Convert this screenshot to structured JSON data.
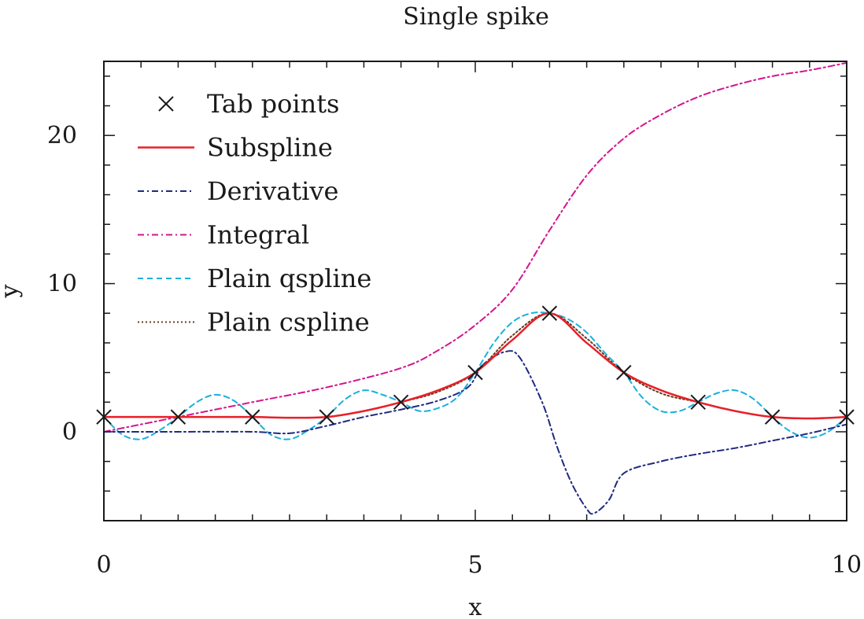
{
  "chart_data": {
    "type": "line",
    "title": "Single spike",
    "xlabel": "x",
    "ylabel": "y",
    "xlim": [
      0,
      10
    ],
    "ylim": [
      -6,
      25
    ],
    "x_ticks": [
      0,
      5,
      10
    ],
    "y_ticks": [
      0,
      10,
      20
    ],
    "x_minor_step": 0.5,
    "y_minor_step": 2,
    "grid": false,
    "legend_position": "top-left",
    "series": [
      {
        "name": "Tab points",
        "style": "markers",
        "color": "#1a1a1a",
        "x": [
          0,
          1,
          2,
          3,
          4,
          5,
          6,
          7,
          8,
          9,
          10
        ],
        "y": [
          1,
          1,
          1,
          1,
          2,
          4,
          8,
          4,
          2,
          1,
          1
        ]
      },
      {
        "name": "Subspline",
        "style": "solid",
        "color": "#e8202a",
        "x": [
          0,
          0.5,
          1,
          1.5,
          2,
          2.5,
          3,
          3.5,
          4,
          4.5,
          5,
          5.5,
          6,
          6.5,
          7,
          7.5,
          8,
          8.5,
          9,
          9.5,
          10
        ],
        "y": [
          1,
          1,
          1,
          1,
          1,
          0.95,
          1,
          1.4,
          2,
          2.8,
          4,
          6.2,
          8,
          6.0,
          4,
          2.8,
          2,
          1.4,
          1,
          0.9,
          1
        ]
      },
      {
        "name": "Derivative",
        "style": "dashdot",
        "color": "#1f2a80",
        "x": [
          0,
          1,
          2,
          2.5,
          3,
          3.5,
          4,
          4.5,
          4.9,
          5.1,
          5.4,
          5.6,
          5.9,
          6.1,
          6.3,
          6.5,
          6.6,
          6.8,
          7,
          7.5,
          8,
          8.5,
          9,
          9.5,
          10
        ],
        "y": [
          0,
          0,
          0,
          -0.1,
          0.4,
          1.0,
          1.5,
          2.1,
          3.0,
          4.5,
          5.4,
          5.0,
          2.0,
          -1.0,
          -3.5,
          -5.2,
          -5.5,
          -4.6,
          -2.8,
          -2.0,
          -1.5,
          -1.1,
          -0.6,
          -0.1,
          0.5
        ]
      },
      {
        "name": "Integral",
        "style": "dashdot",
        "color": "#d4148c",
        "x": [
          0,
          1,
          2,
          3,
          4,
          4.5,
          5,
          5.5,
          6,
          6.5,
          7,
          7.5,
          8,
          8.5,
          9,
          9.5,
          10
        ],
        "y": [
          0,
          1,
          2,
          3,
          4.3,
          5.5,
          7.2,
          9.6,
          13.6,
          17.3,
          19.8,
          21.4,
          22.6,
          23.4,
          24.0,
          24.4,
          24.9
        ]
      },
      {
        "name": "Plain qspline",
        "style": "dashed",
        "color": "#1ab0e0",
        "x": [
          0,
          0.25,
          0.5,
          0.75,
          1,
          1.25,
          1.5,
          1.75,
          2,
          2.25,
          2.5,
          2.75,
          3,
          3.25,
          3.5,
          3.75,
          4,
          4.25,
          4.5,
          4.75,
          5,
          5.25,
          5.5,
          5.75,
          6,
          6.25,
          6.5,
          6.75,
          7,
          7.25,
          7.5,
          7.75,
          8,
          8.25,
          8.5,
          8.75,
          9,
          9.25,
          9.5,
          9.75,
          10
        ],
        "y": [
          1,
          -0.2,
          -0.5,
          0.1,
          1,
          2.0,
          2.5,
          2.1,
          1,
          -0.2,
          -0.5,
          0.1,
          1,
          2.2,
          2.8,
          2.5,
          2,
          1.4,
          1.6,
          2.3,
          4,
          6.0,
          7.4,
          8.0,
          8,
          7.6,
          6.7,
          5.3,
          4,
          2.3,
          1.4,
          1.4,
          2,
          2.6,
          2.8,
          2.2,
          1,
          0,
          -0.4,
          0,
          1
        ]
      },
      {
        "name": "Plain cspline",
        "style": "dotted",
        "color": "#6b3a1f",
        "x": [
          0,
          0.5,
          1,
          1.5,
          2,
          2.5,
          3,
          3.5,
          4,
          4.5,
          5,
          5.5,
          6,
          6.5,
          7,
          7.5,
          8,
          8.5,
          9,
          9.5,
          10
        ],
        "y": [
          1,
          1,
          1,
          1,
          1,
          0.95,
          1,
          1.4,
          2,
          2.7,
          4,
          6.5,
          8,
          6.3,
          4,
          2.6,
          2,
          1.4,
          1,
          0.9,
          1
        ]
      }
    ]
  }
}
